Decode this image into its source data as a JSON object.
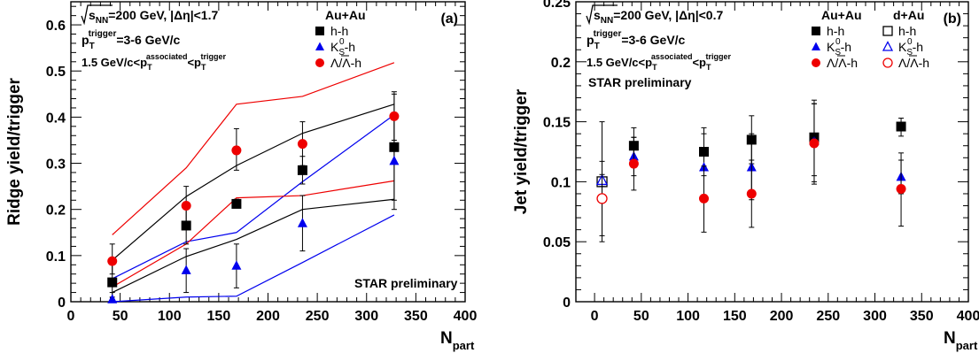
{
  "chart_data": [
    {
      "type": "scatter",
      "panel_label": "(a)",
      "ylabel": "Ridge yield/trigger",
      "xlabel_main": "N",
      "xlabel_sub": "part",
      "xlim": [
        0,
        400
      ],
      "ylim": [
        0,
        0.65
      ],
      "x_ticks": [
        0,
        50,
        100,
        150,
        200,
        250,
        300,
        350,
        400
      ],
      "x_tick_labels": [
        "0",
        "50",
        "100",
        "150",
        "200",
        "250",
        "300",
        "350",
        "400"
      ],
      "y_ticks": [
        0,
        0.1,
        0.2,
        0.3,
        0.4,
        0.5,
        0.6
      ],
      "y_tick_labels": [
        "0",
        "0.1",
        "0.2",
        "0.3",
        "0.4",
        "0.5",
        "0.6"
      ],
      "annotations": {
        "line1_main": "=200 GeV, |Δη|<1.7",
        "line1_sqrt": "s",
        "line1_sqrt_sub": "NN",
        "line2_p": "p",
        "line2_sub": "T",
        "line2_sup": "trigger",
        "line2_rest": "=3-6 GeV/c",
        "line3_pre": "1.5 GeV/c<p",
        "line3_sub": "T",
        "line3_sup": "associated",
        "line3_mid": "<p",
        "line3_sub2": "T",
        "line3_sup2": "trigger",
        "star": "STAR preliminary"
      },
      "legend": {
        "header": "Au+Au",
        "hh": "h-h",
        "k_pre": "K",
        "k_sub": "S",
        "k_sup": "0",
        "k_post": "-h",
        "lam": "Λ/Λ-h"
      },
      "series": [
        {
          "marker": "square-filled",
          "color": "#000000",
          "points": [
            {
              "x": 42,
              "y": 0.042,
              "lo": 0.01,
              "hi": 0.09
            },
            {
              "x": 117,
              "y": 0.165,
              "lo": 0.125,
              "hi": 0.205
            },
            {
              "x": 168,
              "y": 0.212,
              "lo": 0.205,
              "hi": 0.222
            },
            {
              "x": 235,
              "y": 0.285,
              "lo": 0.255,
              "hi": 0.315
            },
            {
              "x": 328,
              "y": 0.335,
              "lo": 0.22,
              "hi": 0.45
            }
          ],
          "band_low": [
            [
              42,
              0.02
            ],
            [
              117,
              0.098
            ],
            [
              168,
              0.135
            ],
            [
              235,
              0.2
            ],
            [
              328,
              0.222
            ]
          ],
          "band_high": [
            [
              42,
              0.09
            ],
            [
              117,
              0.228
            ],
            [
              168,
              0.295
            ],
            [
              235,
              0.365
            ],
            [
              328,
              0.428
            ]
          ]
        },
        {
          "marker": "triangle-filled",
          "color": "#0000ee",
          "points": [
            {
              "x": 42,
              "y": 0.005,
              "lo": 0.0,
              "hi": 0.02
            },
            {
              "x": 117,
              "y": 0.068,
              "lo": 0.02,
              "hi": 0.115
            },
            {
              "x": 168,
              "y": 0.078,
              "lo": 0.03,
              "hi": 0.125
            },
            {
              "x": 235,
              "y": 0.17,
              "lo": 0.11,
              "hi": 0.23
            },
            {
              "x": 328,
              "y": 0.305,
              "lo": 0.2,
              "hi": 0.41
            }
          ],
          "band_low": [
            [
              42,
              0.0
            ],
            [
              117,
              0.01
            ],
            [
              168,
              0.012
            ],
            [
              235,
              0.085
            ],
            [
              328,
              0.188
            ]
          ],
          "band_high": [
            [
              42,
              0.05
            ],
            [
              117,
              0.13
            ],
            [
              168,
              0.15
            ],
            [
              235,
              0.26
            ],
            [
              328,
              0.405
            ]
          ]
        },
        {
          "marker": "circle-filled",
          "color": "#ee0000",
          "points": [
            {
              "x": 42,
              "y": 0.088,
              "lo": 0.06,
              "hi": 0.125
            },
            {
              "x": 117,
              "y": 0.208,
              "lo": 0.16,
              "hi": 0.25
            },
            {
              "x": 168,
              "y": 0.328,
              "lo": 0.285,
              "hi": 0.375
            },
            {
              "x": 235,
              "y": 0.342,
              "lo": 0.295,
              "hi": 0.39
            },
            {
              "x": 328,
              "y": 0.402,
              "lo": 0.35,
              "hi": 0.455
            }
          ],
          "band_low": [
            [
              42,
              0.032
            ],
            [
              117,
              0.125
            ],
            [
              168,
              0.225
            ],
            [
              235,
              0.23
            ],
            [
              328,
              0.262
            ]
          ],
          "band_high": [
            [
              42,
              0.145
            ],
            [
              117,
              0.29
            ],
            [
              168,
              0.428
            ],
            [
              235,
              0.445
            ],
            [
              328,
              0.518
            ]
          ]
        }
      ]
    },
    {
      "type": "scatter",
      "panel_label": "(b)",
      "ylabel": "Jet yield/trigger",
      "xlabel_main": "N",
      "xlabel_sub": "part",
      "xlim": [
        -20,
        400
      ],
      "ylim": [
        0,
        0.25
      ],
      "x_ticks": [
        0,
        50,
        100,
        150,
        200,
        250,
        300,
        350,
        400
      ],
      "x_tick_labels": [
        "0",
        "50",
        "100",
        "150",
        "200",
        "250",
        "300",
        "350",
        "400"
      ],
      "y_ticks": [
        0,
        0.05,
        0.1,
        0.15,
        0.2,
        0.25
      ],
      "y_tick_labels": [
        "0",
        "0.05",
        "0.1",
        "0.15",
        "0.2",
        "0.25"
      ],
      "annotations": {
        "line1_main": "=200 GeV, |Δη|<0.7",
        "line1_sqrt": "s",
        "line1_sqrt_sub": "NN",
        "line2_p": "p",
        "line2_sub": "T",
        "line2_sup": "trigger",
        "line2_rest": "=3-6 GeV/c",
        "line3_pre": "1.5 GeV/c<p",
        "line3_sub": "T",
        "line3_sup": "associated",
        "line3_mid": "<p",
        "line3_sub2": "T",
        "line3_sup2": "trigger",
        "star": "STAR preliminary"
      },
      "legend": {
        "header": "Au+Au",
        "header2": "d+Au",
        "hh": "h-h",
        "k_pre": "K",
        "k_sub": "S",
        "k_sup": "0",
        "k_post": "-h",
        "lam": "Λ/Λ-h"
      },
      "series": [
        {
          "marker": "square-filled",
          "color": "#000000",
          "points": [
            {
              "x": 42,
              "y": 0.13,
              "lo": 0.115,
              "hi": 0.145
            },
            {
              "x": 117,
              "y": 0.125,
              "lo": 0.105,
              "hi": 0.145
            },
            {
              "x": 168,
              "y": 0.135,
              "lo": 0.115,
              "hi": 0.155
            },
            {
              "x": 235,
              "y": 0.137,
              "lo": 0.105,
              "hi": 0.168
            },
            {
              "x": 328,
              "y": 0.146,
              "lo": 0.138,
              "hi": 0.153
            }
          ]
        },
        {
          "marker": "triangle-filled",
          "color": "#0000ee",
          "points": [
            {
              "x": 42,
              "y": 0.121,
              "lo": 0.105,
              "hi": 0.137
            },
            {
              "x": 117,
              "y": 0.112,
              "lo": 0.085,
              "hi": 0.14
            },
            {
              "x": 168,
              "y": 0.112,
              "lo": 0.085,
              "hi": 0.14
            },
            {
              "x": 235,
              "y": 0.134,
              "lo": 0.1,
              "hi": 0.165
            },
            {
              "x": 328,
              "y": 0.104,
              "lo": 0.09,
              "hi": 0.118
            }
          ]
        },
        {
          "marker": "circle-filled",
          "color": "#ee0000",
          "points": [
            {
              "x": 42,
              "y": 0.115,
              "lo": 0.093,
              "hi": 0.137
            },
            {
              "x": 117,
              "y": 0.086,
              "lo": 0.058,
              "hi": 0.113
            },
            {
              "x": 168,
              "y": 0.09,
              "lo": 0.062,
              "hi": 0.118
            },
            {
              "x": 235,
              "y": 0.132,
              "lo": 0.098,
              "hi": 0.165
            },
            {
              "x": 328,
              "y": 0.094,
              "lo": 0.063,
              "hi": 0.124
            }
          ]
        },
        {
          "marker": "square-open",
          "color": "#000000",
          "points": [
            {
              "x": 8,
              "y": 0.1,
              "lo": 0.05,
              "hi": 0.15
            }
          ]
        },
        {
          "marker": "triangle-open",
          "color": "#0000ee",
          "points": [
            {
              "x": 8,
              "y": 0.101,
              "lo": 0.096,
              "hi": 0.106
            }
          ]
        },
        {
          "marker": "circle-open",
          "color": "#ee0000",
          "points": [
            {
              "x": 8,
              "y": 0.086,
              "lo": 0.055,
              "hi": 0.117
            }
          ]
        }
      ]
    }
  ]
}
